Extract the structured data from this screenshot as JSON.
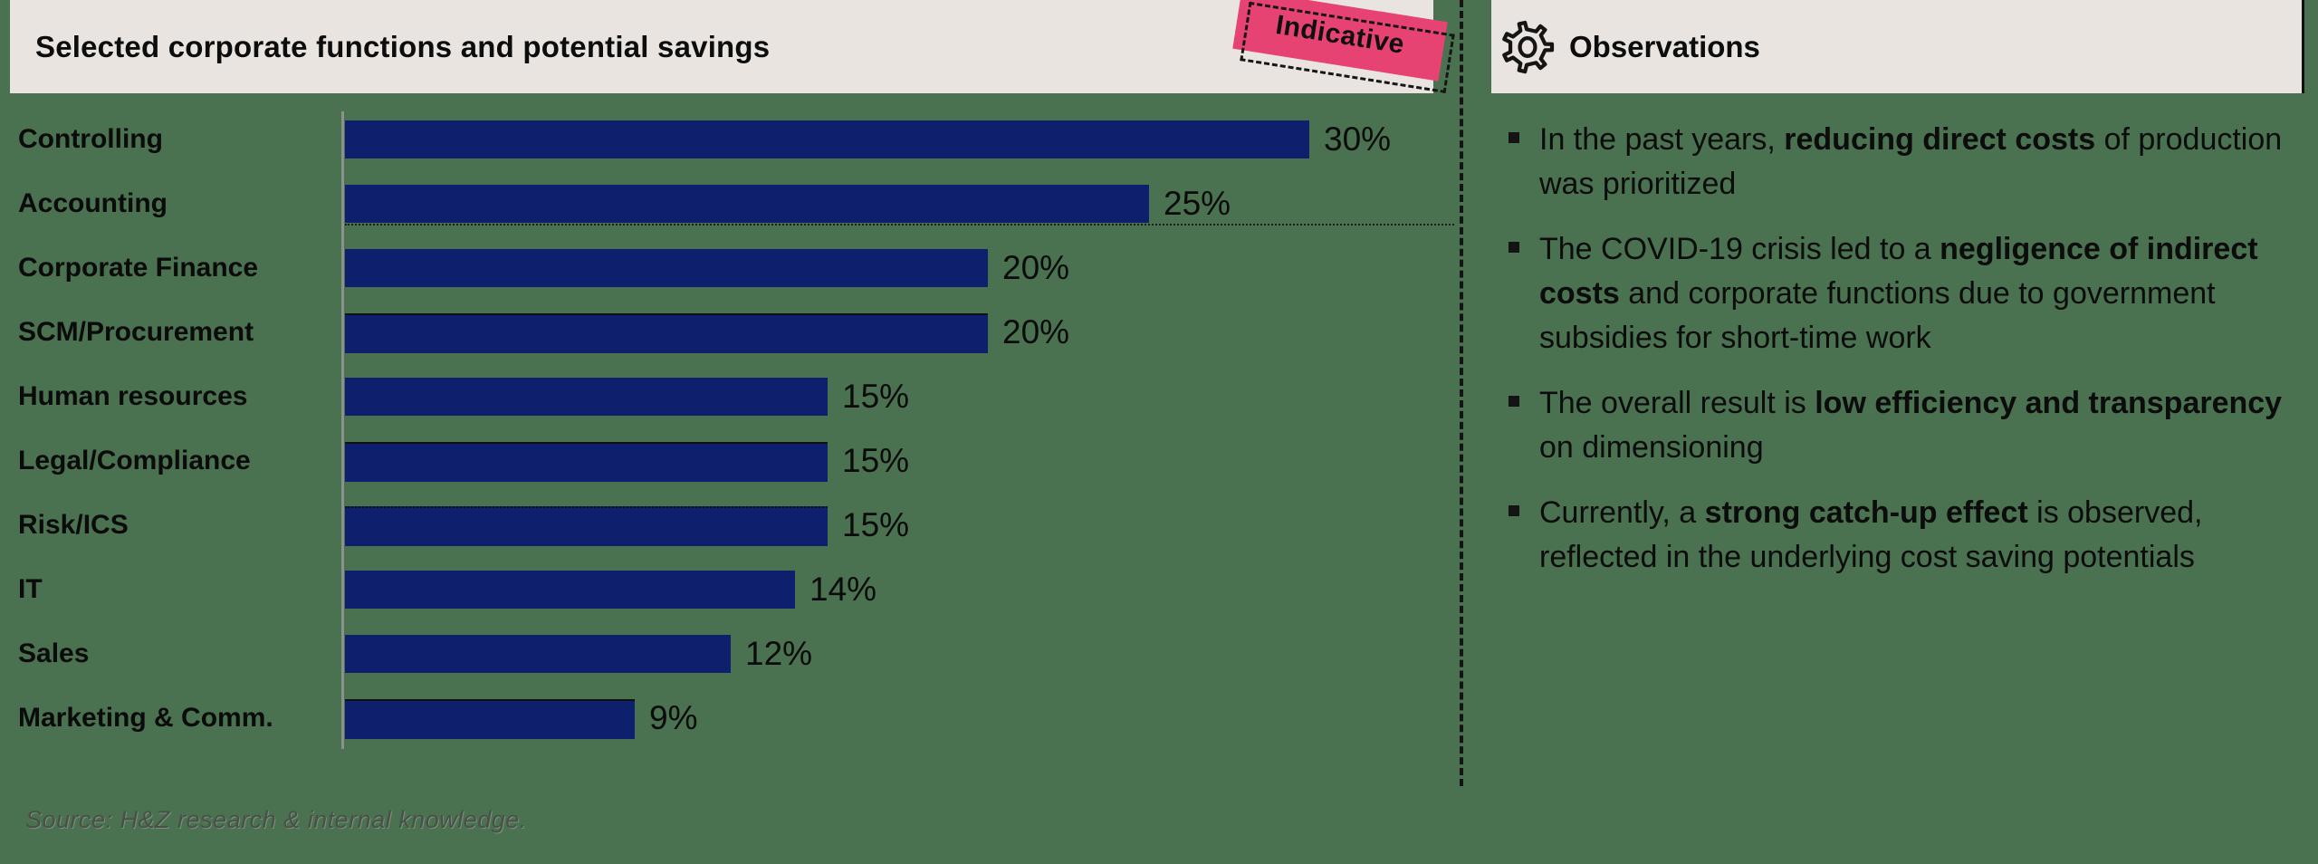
{
  "header": {
    "chart_title": "Selected corporate functions and potential savings",
    "badge_label": "Indicative",
    "observations_title": "Observations"
  },
  "chart_data": {
    "type": "bar",
    "orientation": "horizontal",
    "title": "Selected corporate functions and potential savings",
    "annotation": "Indicative",
    "unit": "%",
    "xlim": [
      0,
      30
    ],
    "grid": false,
    "bar_color": "#0E1F6E",
    "categories": [
      "Controlling",
      "Accounting",
      "Corporate Finance",
      "SCM/Procurement",
      "Human resources",
      "Legal/Compliance",
      "Risk/ICS",
      "IT",
      "Sales",
      "Marketing & Comm."
    ],
    "values": [
      30,
      25,
      20,
      20,
      15,
      15,
      15,
      14,
      12,
      9
    ],
    "value_labels": [
      "30%",
      "25%",
      "20%",
      "20%",
      "15%",
      "15%",
      "15%",
      "14%",
      "12%",
      "9%"
    ],
    "bar_top_edge_style": [
      "none",
      "none",
      "none",
      "solid",
      "none",
      "solid",
      "dotted",
      "none",
      "none",
      "solid"
    ]
  },
  "observations": {
    "icon": "gear-icon",
    "bullets": [
      [
        {
          "t": "In the past years, "
        },
        {
          "t": "reducing direct costs",
          "b": 1
        },
        {
          "t": " of production was prioritized"
        }
      ],
      [
        {
          "t": "The COVID-19 crisis led to a "
        },
        {
          "t": "negligence of indirect costs",
          "b": 1
        },
        {
          "t": " and corporate functions due to government subsidies for short-time work"
        }
      ],
      [
        {
          "t": "The overall result is "
        },
        {
          "t": "low efficiency and transparency",
          "b": 1
        },
        {
          "t": " on dimensioning"
        }
      ],
      [
        {
          "t": "Currently, a "
        },
        {
          "t": "strong catch-up effect",
          "b": 1
        },
        {
          "t": " is observed, reflected in the underlying cost saving potentials"
        }
      ]
    ]
  },
  "source_note": "Source: H&Z research & internal knowledge.",
  "colors": {
    "page_background": "#4A7150",
    "panel_beige": "#E9E4DF",
    "bar_navy": "#0E1F6E",
    "badge_pink": "#E64372",
    "ink_black": "#141414",
    "axis_gray": "#8D918C"
  }
}
